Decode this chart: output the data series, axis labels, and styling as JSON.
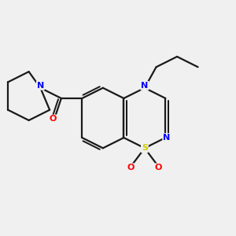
{
  "background_color": "#f0f0f0",
  "bond_color": "#1a1a1a",
  "atom_colors": {
    "N": "#0000ff",
    "S": "#cccc00",
    "O": "#ff0000",
    "C": "#1a1a1a"
  },
  "figsize": [
    3.0,
    3.0
  ],
  "dpi": 100
}
